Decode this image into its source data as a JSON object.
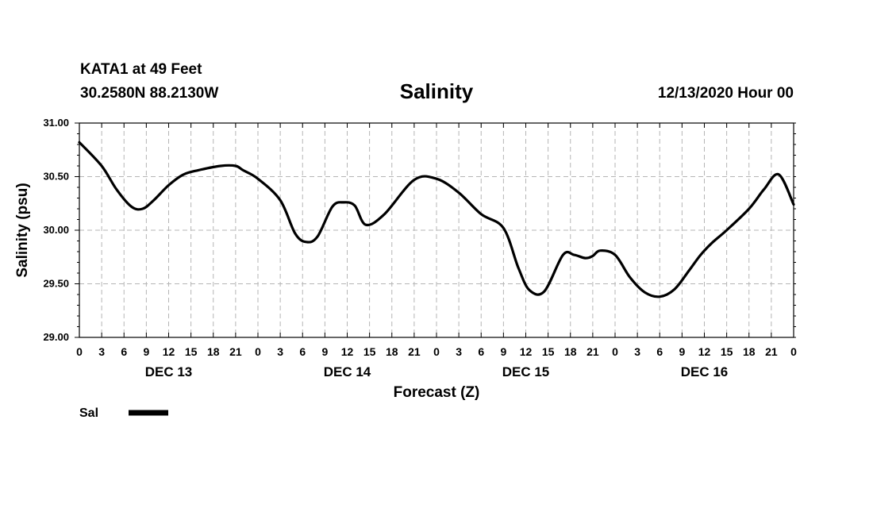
{
  "header": {
    "station": "KATA1 at 49 Feet",
    "coords": "30.2580N 88.2130W",
    "datetime": "12/13/2020 Hour 00"
  },
  "legend": {
    "label": "Sal",
    "color": "#000000"
  },
  "chart_data": {
    "type": "line",
    "title": "Salinity",
    "xlabel": "Forecast (Z)",
    "ylabel": "Salinity (psu)",
    "ylim": [
      29.0,
      31.0
    ],
    "xlim_hours": [
      0,
      96
    ],
    "grid": true,
    "y_ticks": [
      "29.00",
      "29.50",
      "30.00",
      "30.50",
      "31.00"
    ],
    "x_tick_labels": [
      "0",
      "3",
      "6",
      "9",
      "12",
      "15",
      "18",
      "21",
      "0",
      "3",
      "6",
      "9",
      "12",
      "15",
      "18",
      "21",
      "0",
      "3",
      "6",
      "9",
      "12",
      "15",
      "18",
      "21",
      "0",
      "3",
      "6",
      "9",
      "12",
      "15",
      "18",
      "21",
      "0"
    ],
    "day_labels": [
      {
        "label": "DEC 13",
        "hour": 12
      },
      {
        "label": "DEC 14",
        "hour": 36
      },
      {
        "label": "DEC 15",
        "hour": 60
      },
      {
        "label": "DEC 16",
        "hour": 84
      }
    ],
    "series": [
      {
        "name": "Sal",
        "x": [
          0,
          3,
          5,
          7,
          8.5,
          10,
          12,
          14,
          16,
          19,
          21,
          22,
          24,
          27,
          29,
          30.5,
          32,
          34,
          35.5,
          37,
          38.5,
          41,
          45,
          48,
          51,
          54,
          57,
          59,
          60.5,
          62.5,
          65,
          66.5,
          68,
          69,
          70,
          72,
          74,
          76,
          78,
          80,
          82,
          83.5,
          85,
          87,
          90,
          92,
          94,
          96
        ],
        "y": [
          30.82,
          30.6,
          30.38,
          30.22,
          30.2,
          30.28,
          30.42,
          30.52,
          30.56,
          30.6,
          30.6,
          30.56,
          30.48,
          30.28,
          29.97,
          29.89,
          29.94,
          30.22,
          30.26,
          30.23,
          30.05,
          30.15,
          30.47,
          30.48,
          30.35,
          30.15,
          30.02,
          29.65,
          29.44,
          29.43,
          29.77,
          29.77,
          29.74,
          29.76,
          29.81,
          29.77,
          29.56,
          29.42,
          29.38,
          29.45,
          29.63,
          29.77,
          29.88,
          30.0,
          30.2,
          30.38,
          30.52,
          30.24
        ]
      }
    ]
  }
}
